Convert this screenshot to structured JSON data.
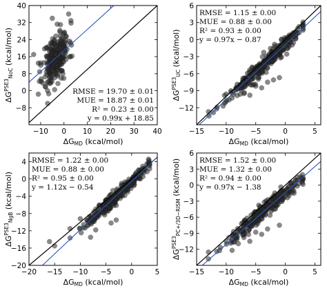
{
  "chart_data": [
    {
      "type": "scatter",
      "xlabel": "ΔG_MD (kcal/mol)",
      "ylabel": "ΔG^PSE3_NoC (kcal/mol)",
      "xlim": [
        -15,
        40
      ],
      "ylim": [
        -16,
        40
      ],
      "xticks": [
        -10,
        0,
        10,
        20,
        30,
        40
      ],
      "yticks": [
        -8,
        0,
        8,
        16,
        24,
        32,
        40
      ],
      "x_tick_labels": [
        "−10",
        "0",
        "10",
        "20",
        "30",
        "40"
      ],
      "y_tick_labels": [
        "−8",
        "0",
        "8",
        "16",
        "24",
        "32",
        "40"
      ],
      "stats": [
        "RMSE = 19.70 ± 0.01",
        "MUE = 18.87 ± 0.01",
        "R² = 0.23 ± 0.00",
        "y = 0.99x + 18.85"
      ],
      "stats_position": "bottom-right",
      "fit": {
        "slope": 0.99,
        "intercept": 18.85
      },
      "cloud": {
        "x_center": -3.5,
        "x_spread": 2.8,
        "x_min": -11,
        "x_max": 4,
        "slope": 0.99,
        "intercept": 18.85,
        "noise": 5.6,
        "count": 240,
        "seed": 11
      },
      "extra_points": [
        [
          -13,
          17
        ],
        [
          -7,
          -6
        ],
        [
          -4,
          0.5
        ],
        [
          -10,
          13
        ],
        [
          -5,
          34
        ],
        [
          2,
          36
        ],
        [
          -8,
          2
        ],
        [
          -1.5,
          31
        ]
      ]
    },
    {
      "type": "scatter",
      "xlabel": "ΔG_MD (kcal/mol)",
      "ylabel": "ΔG^PSE3_UC (kcal/mol)",
      "xlim": [
        -15,
        6
      ],
      "ylim": [
        -15,
        6
      ],
      "xticks": [
        -15,
        -10,
        -5,
        0,
        5
      ],
      "yticks": [
        -12,
        -9,
        -6,
        -3,
        0,
        3,
        6
      ],
      "x_tick_labels": [
        "−15",
        "−10",
        "−5",
        "0",
        "5"
      ],
      "y_tick_labels": [
        "−12",
        "−9",
        "−6",
        "−3",
        "0",
        "3",
        "6"
      ],
      "stats": [
        "RMSE = 1.15 ± 0.00",
        "MUE = 0.88 ± 0.00",
        "R² = 0.93 ± 0.00",
        "y = 0.97x − 0.87"
      ],
      "stats_position": "top-left",
      "fit": {
        "slope": 0.97,
        "intercept": -0.87
      },
      "cloud": {
        "x_center": -3.5,
        "x_spread": 3.2,
        "x_min": -13,
        "x_max": 3,
        "slope": 0.97,
        "intercept": -0.87,
        "noise": 0.7,
        "count": 300,
        "seed": 23
      },
      "extra_points": [
        [
          -13,
          -12.7
        ],
        [
          -10,
          -9.6
        ],
        [
          -7,
          -9.5
        ],
        [
          -5,
          -8.2
        ],
        [
          -4,
          -8.5
        ],
        [
          -6,
          -9.8
        ],
        [
          -1,
          -6.7
        ],
        [
          -3,
          -7.5
        ],
        [
          -2,
          -7.1
        ]
      ]
    },
    {
      "type": "scatter",
      "xlabel": "ΔG_MD (kcal/mol)",
      "ylabel": "ΔG^PSE3_NgB (kcal/mol)",
      "xlim": [
        -20,
        5
      ],
      "ylim": [
        -20,
        6
      ],
      "xticks": [
        -20,
        -15,
        -10,
        -5,
        0,
        5
      ],
      "yticks": [
        -20,
        -16,
        -12,
        -8,
        -4,
        0,
        4
      ],
      "x_tick_labels": [
        "−20",
        "−15",
        "−10",
        "−5",
        "0",
        "5"
      ],
      "y_tick_labels": [
        "−20",
        "−16",
        "−12",
        "−8",
        "−4",
        "0",
        "4"
      ],
      "stats": [
        "RMSE = 1.22 ± 0.00",
        "MUE = 0.88 ± 0.00",
        "R² = 0.95 ± 0.00",
        "y = 1.12x − 0.54"
      ],
      "stats_position": "top-left",
      "fit": {
        "slope": 1.12,
        "intercept": -0.54
      },
      "cloud": {
        "x_center": -3.0,
        "x_spread": 3.0,
        "x_min": -12,
        "x_max": 3.5,
        "slope": 1.12,
        "intercept": -0.54,
        "noise": 0.8,
        "count": 300,
        "seed": 37
      },
      "extra_points": [
        [
          -16,
          -14.5
        ],
        [
          -15,
          -15.5
        ],
        [
          -12,
          -11.5
        ],
        [
          -8,
          -13.5
        ],
        [
          -7,
          -11.8
        ],
        [
          -10,
          -9.2
        ],
        [
          -3,
          -9.5
        ],
        [
          -4,
          -10.2
        ]
      ]
    },
    {
      "type": "scatter",
      "xlabel": "ΔG_MD (kcal/mol)",
      "ylabel": "ΔG^PSE3_PC+/3D−RISM (kcal/mol)",
      "xlim": [
        -15,
        6
      ],
      "ylim": [
        -15,
        6
      ],
      "xticks": [
        -15,
        -10,
        -5,
        0,
        5
      ],
      "yticks": [
        -12,
        -9,
        -6,
        -3,
        0,
        3,
        6
      ],
      "x_tick_labels": [
        "−15",
        "−10",
        "−5",
        "0",
        "5"
      ],
      "y_tick_labels": [
        "−12",
        "−9",
        "−6",
        "−3",
        "0",
        "3",
        "6"
      ],
      "stats": [
        "RMSE = 1.52 ± 0.00",
        "MUE = 1.32 ± 0.00",
        "R² = 0.94 ± 0.00",
        "y = 0.97x − 1.38"
      ],
      "stats_position": "top-left",
      "fit": {
        "slope": 0.97,
        "intercept": -1.38
      },
      "cloud": {
        "x_center": -3.5,
        "x_spread": 3.2,
        "x_min": -13,
        "x_max": 3,
        "slope": 0.97,
        "intercept": -1.38,
        "noise": 0.75,
        "count": 300,
        "seed": 51
      },
      "extra_points": [
        [
          -13,
          -13.8
        ],
        [
          -10,
          -10.5
        ],
        [
          -7,
          -9.8
        ],
        [
          -5,
          -8.8
        ],
        [
          -4,
          -9.2
        ],
        [
          -6,
          -10.5
        ],
        [
          -1,
          -7.5
        ],
        [
          -3,
          -8.2
        ],
        [
          -9,
          -12.2
        ]
      ]
    }
  ]
}
